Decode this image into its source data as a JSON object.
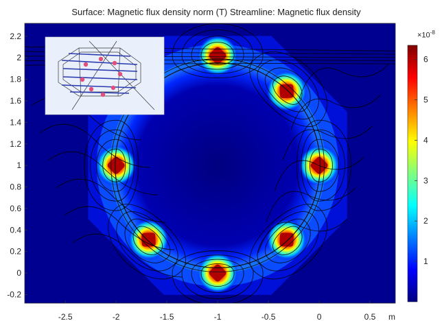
{
  "title": "Surface: Magnetic flux density norm (T)  Streamline: Magnetic flux density",
  "colorbar": {
    "multiplier_base": "×10",
    "multiplier_exp": "-8",
    "ticks": [
      "6",
      "5",
      "4",
      "3",
      "2",
      "1"
    ],
    "tick_values": [
      6,
      5,
      4,
      3,
      2,
      1
    ],
    "range": [
      0,
      6.35
    ],
    "colors": [
      "#00007f",
      "#0000ff",
      "#007fff",
      "#00ffff",
      "#7fff7f",
      "#ffff00",
      "#ff7f00",
      "#ff0000",
      "#7f0000"
    ]
  },
  "chart_data": {
    "type": "heatmap",
    "title": "Surface: Magnetic flux density norm (T)  Streamline: Magnetic flux density",
    "xlabel": "",
    "ylabel": "",
    "x_unit": "m",
    "xlim": [
      -2.9,
      0.75
    ],
    "ylim": [
      -0.28,
      2.32
    ],
    "x_ticks": [
      -2.5,
      -2,
      -1.5,
      -1,
      -0.5,
      0,
      0.5
    ],
    "x_tick_labels": [
      "-2.5",
      "-2",
      "-1.5",
      "-1",
      "-0.5",
      "0",
      "0.5"
    ],
    "y_ticks": [
      -0.2,
      0,
      0.2,
      0.4,
      0.6,
      0.8,
      1,
      1.2,
      1.4,
      1.6,
      1.8,
      2,
      2.2
    ],
    "y_tick_labels": [
      "-0.2",
      "0",
      "0.2",
      "0.4",
      "0.6",
      "0.8",
      "1",
      "1.2",
      "1.4",
      "1.6",
      "1.8",
      "2",
      "2.2"
    ],
    "ring_center": [
      -1.0,
      1.0
    ],
    "ring_radius": 0.98,
    "octagon_circumradius": 1.34,
    "hotspots": [
      {
        "x": -1.0,
        "y": 2.02,
        "value": 6.0
      },
      {
        "x": -0.32,
        "y": 1.69,
        "value": 6.0
      },
      {
        "x": 0.0,
        "y": 1.0,
        "value": 6.0
      },
      {
        "x": -0.32,
        "y": 0.31,
        "value": 6.0
      },
      {
        "x": -1.0,
        "y": 0.0,
        "value": 6.0
      },
      {
        "x": -1.68,
        "y": 0.31,
        "value": 6.0
      },
      {
        "x": -2.0,
        "y": 1.0,
        "value": 6.0
      }
    ],
    "colorbar_range": [
      0,
      6.35
    ],
    "colorbar_multiplier": "1e-8"
  }
}
